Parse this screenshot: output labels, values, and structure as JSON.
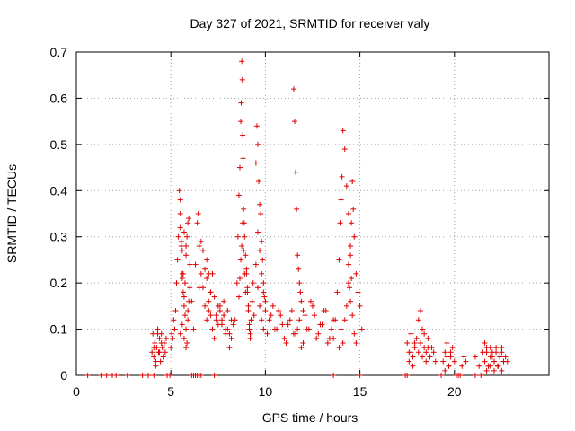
{
  "chart_data": {
    "type": "scatter",
    "title": "Day 327 of 2021, SRMTID for receiver valy",
    "xlabel": "GPS time / hours",
    "ylabel": "SRMTID / TECUs",
    "xlim": [
      0,
      25
    ],
    "ylim": [
      0,
      0.7
    ],
    "xticks": [
      0,
      5,
      10,
      15,
      20
    ],
    "xtick_labels": [
      "0",
      "5",
      "10",
      "15",
      "20"
    ],
    "yticks": [
      0,
      0.1,
      0.2,
      0.3,
      0.4,
      0.5,
      0.6,
      0.7
    ],
    "ytick_labels": [
      "0",
      "0.1",
      "0.2",
      "0.3",
      "0.4",
      "0.5",
      "0.6",
      "0.7"
    ],
    "grid": true,
    "marker": "plus",
    "color": "#e00000",
    "series": [
      {
        "name": "SRMTID",
        "x": [
          0.6,
          1.3,
          1.6,
          1.9,
          2.1,
          2.7,
          3.5,
          3.8,
          4.1,
          4.8,
          4.95,
          6.1,
          6.2,
          6.3,
          6.4,
          6.5,
          6.6,
          7.3,
          13.6,
          15.0,
          17.4,
          17.5,
          19.3,
          20.1,
          20.2,
          20.3,
          21.1,
          21.4,
          4.0,
          4.05,
          4.1,
          4.15,
          4.2,
          4.25,
          4.3,
          4.35,
          4.4,
          4.45,
          4.5,
          4.55,
          4.6,
          4.65,
          4.7,
          4.75,
          4.1,
          4.2,
          4.3,
          4.4,
          4.5,
          4.6,
          5.0,
          5.05,
          5.1,
          5.15,
          5.2,
          5.25,
          5.3,
          5.35,
          5.4,
          5.45,
          5.5,
          5.55,
          5.6,
          5.65,
          5.7,
          5.75,
          5.8,
          5.85,
          5.9,
          5.95,
          6.0,
          5.5,
          5.5,
          5.55,
          5.6,
          5.65,
          5.7,
          5.75,
          5.8,
          5.85,
          5.9,
          5.95,
          6.0,
          5.6,
          5.7,
          5.8,
          5.9,
          5.5,
          5.6,
          5.7,
          5.8,
          6.1,
          6.2,
          6.3,
          6.4,
          6.45,
          6.5,
          6.6,
          6.7,
          6.8,
          6.9,
          7.0,
          7.1,
          7.2,
          7.3,
          7.4,
          7.5,
          7.6,
          7.7,
          7.8,
          7.9,
          8.0,
          8.1,
          8.2,
          6.5,
          6.6,
          6.7,
          6.8,
          6.9,
          7.0,
          7.1,
          7.2,
          7.3,
          7.4,
          7.5,
          7.6,
          7.7,
          7.8,
          7.9,
          8.0,
          8.1,
          8.2,
          8.3,
          6.9,
          7.0,
          7.1,
          8.4,
          8.5,
          8.55,
          8.6,
          8.65,
          8.7,
          8.72,
          8.75,
          8.78,
          8.8,
          8.82,
          8.85,
          8.88,
          8.9,
          8.95,
          9.0,
          9.05,
          9.1,
          9.15,
          9.2,
          9.25,
          8.6,
          8.65,
          8.7,
          8.75,
          8.8,
          8.85,
          8.9,
          8.95,
          9.0,
          9.05,
          9.1,
          9.15,
          9.2,
          9.25,
          9.3,
          9.35,
          9.4,
          9.5,
          9.55,
          9.6,
          9.65,
          9.7,
          9.75,
          9.8,
          9.85,
          9.9,
          9.95,
          10.0,
          9.6,
          9.7,
          9.8,
          9.9,
          9.5,
          9.6,
          9.7,
          9.8,
          9.9,
          10.0,
          10.2,
          10.4,
          10.6,
          10.8,
          11.0,
          11.2,
          11.4,
          11.6,
          11.8,
          12.0,
          12.2,
          12.4,
          12.6,
          12.8,
          13.0,
          13.2,
          13.4,
          13.6,
          10.1,
          10.3,
          10.5,
          10.7,
          10.9,
          11.1,
          11.3,
          11.5,
          11.7,
          11.9,
          12.1,
          12.3,
          12.5,
          12.7,
          12.9,
          13.1,
          13.3,
          13.5,
          11.5,
          11.55,
          11.6,
          11.65,
          11.7,
          11.75,
          11.8,
          11.85,
          11.9,
          12.0,
          13.6,
          13.7,
          13.8,
          13.9,
          13.95,
          14.0,
          14.05,
          14.1,
          14.2,
          14.3,
          14.4,
          14.5,
          14.55,
          14.6,
          14.65,
          14.7,
          14.8,
          14.9,
          15.0,
          15.1,
          13.9,
          14.0,
          14.1,
          14.2,
          14.3,
          14.4,
          14.5,
          14.6,
          14.7,
          14.8,
          14.4,
          14.5,
          14.45,
          14.55,
          17.5,
          17.6,
          17.7,
          17.8,
          17.9,
          18.0,
          18.1,
          18.2,
          18.3,
          18.4,
          18.5,
          18.6,
          18.7,
          18.8,
          18.9,
          19.0,
          18.2,
          18.3,
          18.4,
          18.1,
          17.6,
          17.7,
          17.8,
          17.9,
          18.5,
          18.6,
          19.4,
          19.5,
          19.6,
          19.7,
          19.8,
          19.9,
          20.0,
          19.5,
          19.6,
          19.7,
          19.8,
          20.4,
          20.5,
          20.6,
          21.1,
          21.3,
          21.5,
          21.6,
          21.7,
          21.8,
          21.9,
          22.0,
          22.1,
          22.2,
          22.3,
          22.4,
          22.5,
          22.6,
          22.7,
          22.8,
          21.6,
          21.7,
          21.8,
          21.9,
          22.0,
          22.1,
          22.2,
          22.3,
          22.4,
          22.5,
          22.6,
          21.7,
          21.9,
          22.1,
          22.3,
          22.5
        ],
        "y": [
          0,
          0,
          0,
          0,
          0,
          0,
          0,
          0,
          0,
          0,
          0,
          0,
          0,
          0,
          0,
          0,
          0,
          0,
          0,
          0,
          0,
          0,
          0,
          0,
          0,
          0,
          0,
          0,
          0.05,
          0.09,
          0.04,
          0.07,
          0.02,
          0.06,
          0.1,
          0.05,
          0.08,
          0.03,
          0.09,
          0.06,
          0.04,
          0.07,
          0.05,
          0.08,
          0.06,
          0.03,
          0.09,
          0.05,
          0.07,
          0.04,
          0.06,
          0.09,
          0.08,
          0.12,
          0.1,
          0.14,
          0.2,
          0.25,
          0.3,
          0.4,
          0.35,
          0.28,
          0.22,
          0.18,
          0.15,
          0.2,
          0.26,
          0.3,
          0.33,
          0.34,
          0.24,
          0.38,
          0.32,
          0.29,
          0.27,
          0.22,
          0.17,
          0.13,
          0.1,
          0.07,
          0.12,
          0.16,
          0.19,
          0.21,
          0.31,
          0.28,
          0.14,
          0.09,
          0.11,
          0.08,
          0.06,
          0.16,
          0.1,
          0.24,
          0.33,
          0.35,
          0.28,
          0.22,
          0.19,
          0.15,
          0.12,
          0.14,
          0.18,
          0.22,
          0.17,
          0.13,
          0.11,
          0.15,
          0.12,
          0.16,
          0.1,
          0.14,
          0.09,
          0.12,
          0.19,
          0.29,
          0.27,
          0.23,
          0.21,
          0.16,
          0.13,
          0.1,
          0.08,
          0.12,
          0.15,
          0.14,
          0.11,
          0.13,
          0.09,
          0.1,
          0.06,
          0.08,
          0.11,
          0.25,
          0.22,
          0.18,
          0.12,
          0.2,
          0.3,
          0.39,
          0.45,
          0.55,
          0.59,
          0.68,
          0.64,
          0.52,
          0.47,
          0.36,
          0.33,
          0.3,
          0.26,
          0.22,
          0.18,
          0.15,
          0.1,
          0.08,
          0.12,
          0.17,
          0.21,
          0.25,
          0.28,
          0.33,
          0.27,
          0.22,
          0.18,
          0.23,
          0.19,
          0.14,
          0.11,
          0.09,
          0.12,
          0.16,
          0.2,
          0.13,
          0.46,
          0.54,
          0.5,
          0.42,
          0.37,
          0.35,
          0.29,
          0.25,
          0.2,
          0.17,
          0.14,
          0.31,
          0.27,
          0.22,
          0.18,
          0.24,
          0.19,
          0.15,
          0.12,
          0.1,
          0.16,
          0.12,
          0.15,
          0.1,
          0.13,
          0.08,
          0.11,
          0.14,
          0.09,
          0.12,
          0.07,
          0.1,
          0.16,
          0.13,
          0.09,
          0.11,
          0.14,
          0.08,
          0.12,
          0.09,
          0.13,
          0.1,
          0.14,
          0.11,
          0.07,
          0.12,
          0.09,
          0.1,
          0.06,
          0.13,
          0.1,
          0.15,
          0.08,
          0.11,
          0.14,
          0.07,
          0.1,
          0.62,
          0.55,
          0.44,
          0.36,
          0.26,
          0.23,
          0.2,
          0.18,
          0.16,
          0.14,
          0.08,
          0.12,
          0.18,
          0.25,
          0.33,
          0.38,
          0.43,
          0.53,
          0.49,
          0.41,
          0.35,
          0.28,
          0.33,
          0.42,
          0.36,
          0.3,
          0.22,
          0.18,
          0.15,
          0.1,
          0.06,
          0.1,
          0.07,
          0.12,
          0.15,
          0.2,
          0.16,
          0.13,
          0.09,
          0.07,
          0.24,
          0.26,
          0.19,
          0.21,
          0.07,
          0.05,
          0.09,
          0.04,
          0.06,
          0.08,
          0.05,
          0.07,
          0.04,
          0.06,
          0.05,
          0.08,
          0.04,
          0.06,
          0.05,
          0.03,
          0.14,
          0.1,
          0.09,
          0.12,
          0.03,
          0.05,
          0.02,
          0.07,
          0.03,
          0.06,
          0.03,
          0.05,
          0.07,
          0.02,
          0.04,
          0.06,
          0.03,
          0.01,
          0.04,
          0.02,
          0.05,
          0.02,
          0.04,
          0.03,
          0.04,
          0.02,
          0.05,
          0.03,
          0.06,
          0.02,
          0.04,
          0.05,
          0.03,
          0.06,
          0.02,
          0.04,
          0.05,
          0.03,
          0.04,
          0.03,
          0.07,
          0.05,
          0.02,
          0.06,
          0.04,
          0.03,
          0.05,
          0.02,
          0.04,
          0.06,
          0.03,
          0.01,
          0.02,
          0.01,
          0.02,
          0.01
        ]
      }
    ]
  }
}
